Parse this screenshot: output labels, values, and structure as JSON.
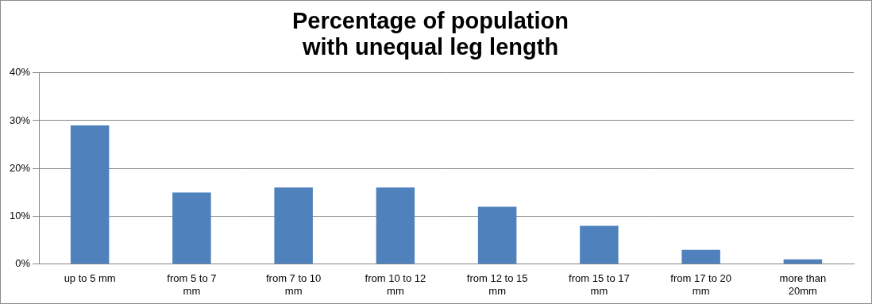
{
  "chart_data": {
    "type": "bar",
    "title": "Percentage of population with unequal leg length",
    "categories": [
      "up to 5 mm",
      "from 5 to 7 mm",
      "from 7 to 10 mm",
      "from 10 to 12 mm",
      "from 12 to 15 mm",
      "from 15 to 17 mm",
      "from 17 to 20 mm",
      "more than 20mm"
    ],
    "values": [
      29,
      15,
      16,
      16,
      12,
      8,
      3,
      1
    ],
    "color": "#4f81bd",
    "ylim": [
      0,
      40
    ],
    "yticks": [
      {
        "value": 0,
        "label": "0%"
      },
      {
        "value": 10,
        "label": "10%"
      },
      {
        "value": 20,
        "label": "20%"
      },
      {
        "value": 30,
        "label": "30%"
      },
      {
        "value": 40,
        "label": "40%"
      }
    ],
    "grid": true
  }
}
